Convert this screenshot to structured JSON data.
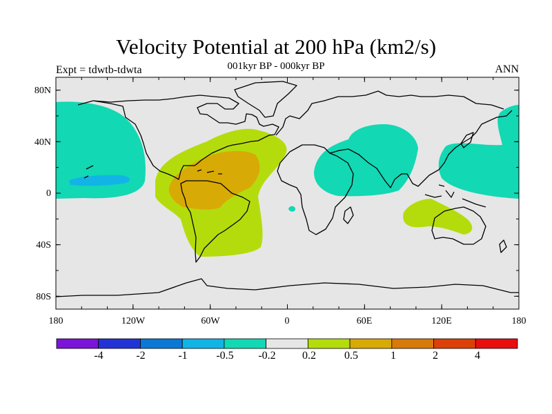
{
  "figure": {
    "title": "Velocity Potential at 200 hPa (km2/s)",
    "subtitle": "001kyr BP - 000kyr BP",
    "left_label": "Expt = tdwtb-tdwta",
    "right_label": "ANN"
  },
  "map": {
    "projection": "cylindrical equidistant",
    "lon_range": [
      -180,
      180
    ],
    "lat_range": [
      -90,
      90
    ],
    "background_color": "#e6e6e6",
    "coastline_color": "#000000"
  },
  "axes": {
    "lat_ticks": [
      {
        "label": "80N",
        "value": 80
      },
      {
        "label": "40N",
        "value": 40
      },
      {
        "label": "0",
        "value": 0
      },
      {
        "label": "40S",
        "value": -40
      },
      {
        "label": "80S",
        "value": -80
      }
    ],
    "lon_ticks": [
      {
        "label": "180",
        "value": -180
      },
      {
        "label": "120W",
        "value": -120
      },
      {
        "label": "60W",
        "value": -60
      },
      {
        "label": "0",
        "value": 0
      },
      {
        "label": "60E",
        "value": 60
      },
      {
        "label": "120E",
        "value": 120
      },
      {
        "label": "180",
        "value": 180
      }
    ]
  },
  "colorbar": {
    "colors": [
      "#7a14d8",
      "#2233d6",
      "#0c78d6",
      "#12b4e6",
      "#12d8b4",
      "#e6e6e6",
      "#b4dc0c",
      "#d8aa06",
      "#d87a0a",
      "#dc4008",
      "#e80e0e"
    ],
    "labels": [
      "-4",
      "-2",
      "-1",
      "-0.5",
      "-0.2",
      "0.2",
      "0.5",
      "1",
      "2",
      "4"
    ]
  }
}
